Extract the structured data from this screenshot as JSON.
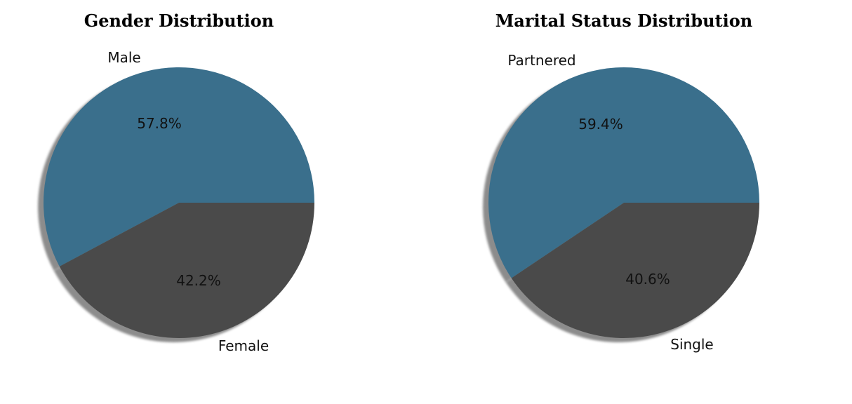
{
  "chart_data": [
    {
      "type": "pie",
      "title": "Gender Distribution",
      "categories": [
        "Male",
        "Female"
      ],
      "values": [
        57.8,
        42.2
      ],
      "percent_labels": [
        "57.8%",
        "42.2%"
      ],
      "colors": [
        "#3a6f8c",
        "#4a4a4a"
      ],
      "shadow": true,
      "start_angle_deg": 0,
      "direction": "counterclockwise"
    },
    {
      "type": "pie",
      "title": "Marital Status Distribution",
      "categories": [
        "Partnered",
        "Single"
      ],
      "values": [
        59.4,
        40.6
      ],
      "percent_labels": [
        "59.4%",
        "40.6%"
      ],
      "colors": [
        "#3a6f8c",
        "#4a4a4a"
      ],
      "shadow": true,
      "start_angle_deg": 0,
      "direction": "counterclockwise"
    }
  ]
}
